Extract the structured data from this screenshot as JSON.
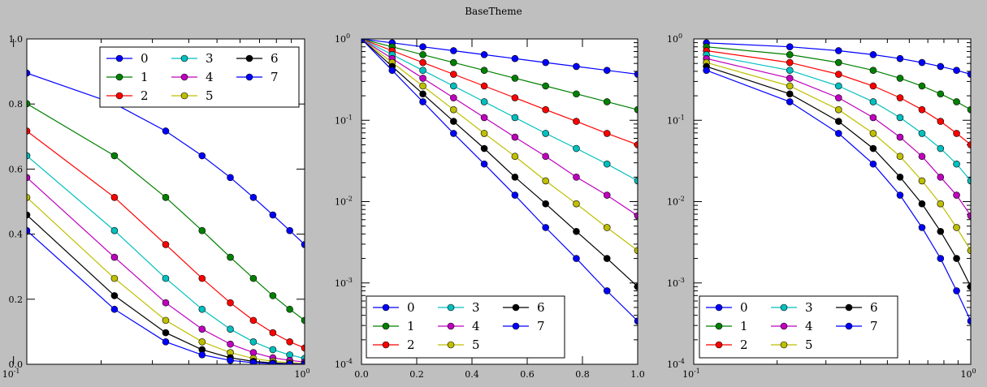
{
  "figure": {
    "title": "BaseTheme"
  },
  "colors": [
    "#0000ff",
    "#008000",
    "#ff0000",
    "#00bfbf",
    "#bf00bf",
    "#bfbf00",
    "#000000",
    "#0000ff"
  ],
  "chart_data": [
    {
      "type": "line",
      "xscale": "log",
      "yscale": "linear",
      "xlim": [
        0.1111,
        1.0
      ],
      "ylim": [
        0,
        1.0
      ],
      "xticks": [
        0.1,
        1
      ],
      "xtick_labels": [
        "10",
        "10"
      ],
      "xtick_exponents": [
        "-1",
        "0"
      ],
      "yticks": [
        0,
        0.2,
        0.4,
        0.6,
        0.8,
        1.0
      ],
      "ytick_labels": [
        "0.0",
        "0.2",
        "0.4",
        "0.6",
        "0.8",
        "1.0"
      ],
      "legend": {
        "placement": "top-right",
        "columns": 3
      },
      "x": [
        0.1111,
        0.2222,
        0.3333,
        0.4444,
        0.5556,
        0.6667,
        0.7778,
        0.8889,
        1.0
      ],
      "series": [
        {
          "name": "0",
          "values": [
            0.895,
            0.801,
            0.717,
            0.641,
            0.574,
            0.513,
            0.459,
            0.411,
            0.368
          ]
        },
        {
          "name": "1",
          "values": [
            0.801,
            0.641,
            0.513,
            0.411,
            0.329,
            0.264,
            0.211,
            0.169,
            0.135
          ]
        },
        {
          "name": "2",
          "values": [
            0.717,
            0.513,
            0.368,
            0.264,
            0.189,
            0.135,
            0.097,
            0.069,
            0.05
          ]
        },
        {
          "name": "3",
          "values": [
            0.641,
            0.411,
            0.264,
            0.169,
            0.108,
            0.069,
            0.045,
            0.029,
            0.018
          ]
        },
        {
          "name": "4",
          "values": [
            0.574,
            0.329,
            0.189,
            0.108,
            0.062,
            0.036,
            0.02,
            0.012,
            0.007
          ]
        },
        {
          "name": "5",
          "values": [
            0.513,
            0.264,
            0.135,
            0.069,
            0.036,
            0.018,
            0.009,
            0.005,
            0.002
          ]
        },
        {
          "name": "6",
          "values": [
            0.459,
            0.211,
            0.097,
            0.045,
            0.02,
            0.009,
            0.004,
            0.002,
            0.001
          ]
        },
        {
          "name": "7",
          "values": [
            0.411,
            0.169,
            0.069,
            0.029,
            0.012,
            0.005,
            0.002,
            0.001,
            0.0003
          ]
        }
      ]
    },
    {
      "type": "line",
      "xscale": "linear",
      "yscale": "log",
      "xlim": [
        0,
        1.0
      ],
      "ylim": [
        0.0001,
        1.0
      ],
      "xticks": [
        0,
        0.2,
        0.4,
        0.6,
        0.8,
        1.0
      ],
      "xtick_labels": [
        "0.0",
        "0.2",
        "0.4",
        "0.6",
        "0.8",
        "1.0"
      ],
      "yticks": [
        0.0001,
        0.001,
        0.01,
        0.1,
        1
      ],
      "ytick_labels": [
        "10",
        "10",
        "10",
        "10",
        "10"
      ],
      "ytick_exponents": [
        "-4",
        "-3",
        "-2",
        "-1",
        "0"
      ],
      "legend": {
        "placement": "bottom-left",
        "columns": 3
      },
      "x": [
        0.0,
        0.1111,
        0.2222,
        0.3333,
        0.4444,
        0.5556,
        0.6667,
        0.7778,
        0.8889,
        1.0
      ],
      "series": [
        {
          "name": "0",
          "values": [
            1,
            0.895,
            0.801,
            0.717,
            0.641,
            0.574,
            0.513,
            0.459,
            0.411,
            0.368
          ]
        },
        {
          "name": "1",
          "values": [
            1,
            0.801,
            0.641,
            0.513,
            0.411,
            0.329,
            0.264,
            0.211,
            0.169,
            0.135
          ]
        },
        {
          "name": "2",
          "values": [
            1,
            0.717,
            0.513,
            0.368,
            0.264,
            0.189,
            0.135,
            0.097,
            0.069,
            0.05
          ]
        },
        {
          "name": "3",
          "values": [
            1,
            0.641,
            0.411,
            0.264,
            0.169,
            0.108,
            0.069,
            0.045,
            0.029,
            0.018
          ]
        },
        {
          "name": "4",
          "values": [
            1,
            0.574,
            0.329,
            0.189,
            0.108,
            0.062,
            0.036,
            0.02,
            0.012,
            0.0067
          ]
        },
        {
          "name": "5",
          "values": [
            1,
            0.513,
            0.264,
            0.135,
            0.069,
            0.036,
            0.018,
            0.0094,
            0.0048,
            0.0025
          ]
        },
        {
          "name": "6",
          "values": [
            1,
            0.459,
            0.211,
            0.097,
            0.045,
            0.02,
            0.0094,
            0.0043,
            0.002,
            0.0009
          ]
        },
        {
          "name": "7",
          "values": [
            1,
            0.411,
            0.169,
            0.069,
            0.029,
            0.012,
            0.0048,
            0.002,
            0.0008,
            0.00034
          ]
        }
      ]
    },
    {
      "type": "line",
      "xscale": "log",
      "yscale": "log",
      "xlim": [
        0.1,
        1.0
      ],
      "ylim": [
        0.0001,
        1.0
      ],
      "xticks": [
        0.1,
        1
      ],
      "xtick_labels": [
        "10",
        "10"
      ],
      "xtick_exponents": [
        "-1",
        "0"
      ],
      "yticks": [
        0.0001,
        0.001,
        0.01,
        0.1,
        1
      ],
      "ytick_labels": [
        "10",
        "10",
        "10",
        "10",
        "10"
      ],
      "ytick_exponents": [
        "-4",
        "-3",
        "-2",
        "-1",
        "0"
      ],
      "legend": {
        "placement": "bottom-left",
        "columns": 3
      },
      "x": [
        0.1111,
        0.2222,
        0.3333,
        0.4444,
        0.5556,
        0.6667,
        0.7778,
        0.8889,
        1.0
      ],
      "series": [
        {
          "name": "0",
          "values": [
            0.895,
            0.801,
            0.717,
            0.641,
            0.574,
            0.513,
            0.459,
            0.411,
            0.368
          ]
        },
        {
          "name": "1",
          "values": [
            0.801,
            0.641,
            0.513,
            0.411,
            0.329,
            0.264,
            0.211,
            0.169,
            0.135
          ]
        },
        {
          "name": "2",
          "values": [
            0.717,
            0.513,
            0.368,
            0.264,
            0.189,
            0.135,
            0.097,
            0.069,
            0.05
          ]
        },
        {
          "name": "3",
          "values": [
            0.641,
            0.411,
            0.264,
            0.169,
            0.108,
            0.069,
            0.045,
            0.029,
            0.018
          ]
        },
        {
          "name": "4",
          "values": [
            0.574,
            0.329,
            0.189,
            0.108,
            0.062,
            0.036,
            0.02,
            0.012,
            0.0067
          ]
        },
        {
          "name": "5",
          "values": [
            0.513,
            0.264,
            0.135,
            0.069,
            0.036,
            0.018,
            0.0094,
            0.0048,
            0.0025
          ]
        },
        {
          "name": "6",
          "values": [
            0.459,
            0.211,
            0.097,
            0.045,
            0.02,
            0.0094,
            0.0043,
            0.002,
            0.0009
          ]
        },
        {
          "name": "7",
          "values": [
            0.411,
            0.169,
            0.069,
            0.029,
            0.012,
            0.0048,
            0.002,
            0.0008,
            0.00034
          ]
        }
      ]
    }
  ]
}
